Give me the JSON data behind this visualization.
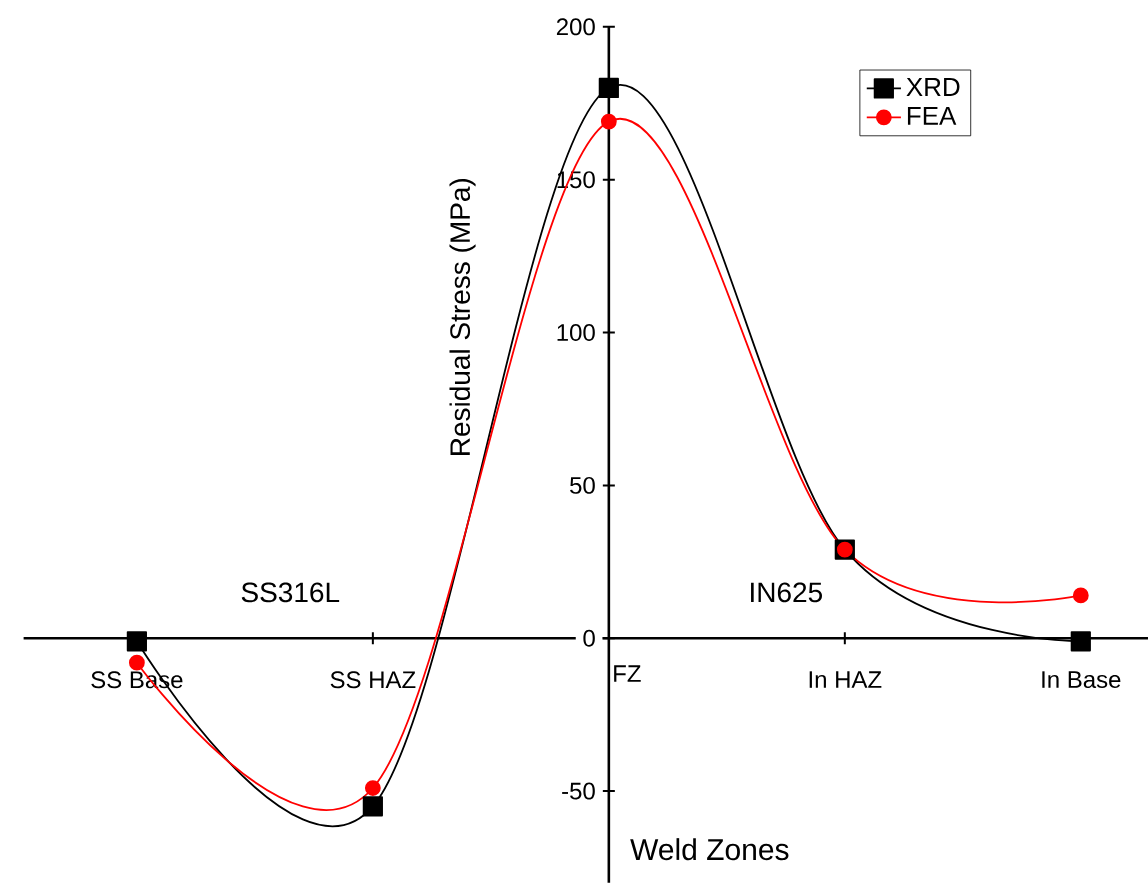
{
  "chart_data": {
    "type": "line",
    "xlabel": "Weld Zones",
    "ylabel": "Residual Stress (MPa)",
    "categories": [
      "SS Base",
      "SS HAZ",
      "FZ",
      "In HAZ",
      "In Base"
    ],
    "series": [
      {
        "name": "XRD",
        "color": "#000000",
        "marker": "square",
        "values": [
          -1,
          -55,
          180,
          29,
          -1
        ]
      },
      {
        "name": "FEA",
        "color": "#ff0000",
        "marker": "circle",
        "values": [
          -8,
          -49,
          169,
          29,
          14
        ]
      }
    ],
    "ylim": [
      -80,
      200
    ],
    "yticks": [
      -50,
      0,
      50,
      100,
      150,
      200
    ],
    "annotations": [
      "SS316L",
      "IN625"
    ],
    "legend": "top right",
    "line_style": "solid"
  }
}
